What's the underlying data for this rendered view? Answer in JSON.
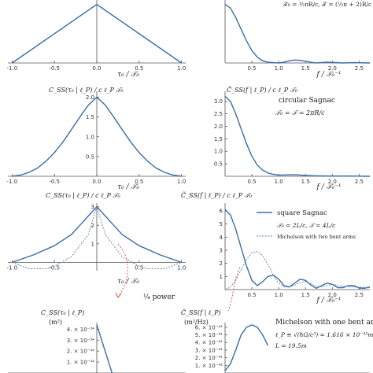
{
  "chart_data": [
    {
      "id": "p1",
      "type": "line",
      "xlabel": "τ₀ / 𝒯₀",
      "xlim": [
        -1.05,
        1.05
      ],
      "ylim": [
        0,
        4.3
      ],
      "xticks": [
        "-1.0",
        "-0.5",
        "0.0",
        "0.5",
        "1.0"
      ],
      "yticks": [],
      "series": [
        {
          "style": "solid",
          "x": [
            -1.0,
            0.0,
            1.0
          ],
          "y": [
            0.0,
            4.0,
            0.0
          ]
        }
      ]
    },
    {
      "id": "p2",
      "type": "line",
      "xlabel": "f / 𝒯₀⁻¹",
      "xlim": [
        0,
        2.7
      ],
      "ylim": [
        0,
        4.3
      ],
      "xticks": [
        "0.5",
        "1.0",
        "1.5",
        "2.0",
        "2.5"
      ],
      "annotations": [
        "𝒯₀ = ½πR/c,  𝒯 = (½π + 2)R/c"
      ],
      "series": [
        {
          "style": "solid",
          "x": [
            0,
            0.1,
            0.2,
            0.3,
            0.4,
            0.5,
            0.6,
            0.7,
            0.8,
            0.9,
            1.0,
            1.1,
            1.2,
            1.3,
            1.4,
            1.5,
            1.6,
            1.7,
            1.8,
            1.9,
            2.0,
            2.2,
            2.4,
            2.7
          ],
          "y": [
            4.0,
            3.75,
            3.1,
            2.3,
            1.5,
            0.85,
            0.4,
            0.15,
            0.05,
            0.02,
            0.0,
            0.05,
            0.15,
            0.2,
            0.18,
            0.12,
            0.05,
            0.0,
            0.03,
            0.06,
            0.04,
            0.0,
            0.02,
            0.0
          ]
        }
      ]
    },
    {
      "id": "p3",
      "type": "line",
      "ylabel": "C_SS(τ₀ | ℓ_P) / c ℓ_P 𝒯₀",
      "xlabel": "τ₀ / 𝒯₀",
      "xlim": [
        -1.05,
        1.05
      ],
      "ylim": [
        0,
        2.15
      ],
      "xticks": [
        "-1.0",
        "-0.5",
        "0.0",
        "0.5",
        "1.0"
      ],
      "yticks": [
        "0.5",
        "1.0",
        "1.5",
        "2.0"
      ],
      "series": [
        {
          "style": "solid",
          "x": [
            -1.0,
            -0.9,
            -0.8,
            -0.7,
            -0.6,
            -0.5,
            -0.4,
            -0.3,
            -0.2,
            -0.1,
            0.0,
            0.1,
            0.2,
            0.3,
            0.4,
            0.5,
            0.6,
            0.7,
            0.8,
            0.9,
            1.0
          ],
          "y": [
            0.0,
            0.03,
            0.1,
            0.21,
            0.38,
            0.6,
            0.87,
            1.18,
            1.5,
            1.8,
            2.0,
            1.8,
            1.5,
            1.18,
            0.87,
            0.6,
            0.38,
            0.21,
            0.1,
            0.03,
            0.0
          ]
        }
      ]
    },
    {
      "id": "p4",
      "type": "line",
      "ylabel": "C̃_SS(f | ℓ_P) / c ℓ_P 𝒯₀",
      "xlabel": "f / 𝒯₀⁻¹",
      "xlim": [
        0,
        2.7
      ],
      "ylim": [
        0,
        3.4
      ],
      "xticks": [
        "0.5",
        "1.0",
        "1.5",
        "2.0",
        "2.5"
      ],
      "yticks": [
        "0.5",
        "1.0",
        "1.5",
        "2.0",
        "2.5",
        "3.0"
      ],
      "annotations": [
        "circular Sagnac",
        "𝒯₀ = 𝒯 = 2πR/c"
      ],
      "series": [
        {
          "style": "solid",
          "x": [
            0,
            0.1,
            0.2,
            0.3,
            0.4,
            0.5,
            0.6,
            0.7,
            0.8,
            0.9,
            1.0,
            1.1,
            1.2,
            1.3,
            1.4,
            1.5,
            1.7,
            2.0,
            2.3,
            2.7
          ],
          "y": [
            3.2,
            3.0,
            2.5,
            1.9,
            1.3,
            0.8,
            0.45,
            0.25,
            0.13,
            0.08,
            0.05,
            0.05,
            0.06,
            0.06,
            0.05,
            0.03,
            0.02,
            0.01,
            0.01,
            0.0
          ]
        }
      ]
    },
    {
      "id": "p5",
      "type": "line",
      "ylabel": "C_SS(τ₀ | ℓ_P) / c ℓ_P 𝒯₀",
      "xlabel": "τ₀ / 𝒯₀",
      "xlim": [
        -1.05,
        1.05
      ],
      "ylim": [
        -0.45,
        3.2
      ],
      "xticks": [
        "-1.0",
        "-0.5",
        "0.5",
        "1.0"
      ],
      "yticks": [
        "1",
        "2",
        "3"
      ],
      "series": [
        {
          "style": "solid",
          "x": [
            -1.0,
            -0.75,
            -0.5,
            -0.3,
            -0.2,
            -0.1,
            0.0,
            0.1,
            0.2,
            0.3,
            0.5,
            0.75,
            1.0
          ],
          "y": [
            0.0,
            0.4,
            0.9,
            1.5,
            2.0,
            2.5,
            3.0,
            2.5,
            2.0,
            1.5,
            0.9,
            0.4,
            0.0
          ]
        },
        {
          "style": "dotted",
          "x": [
            -1.0,
            -0.8,
            -0.6,
            -0.5,
            -0.3,
            -0.1,
            0.0,
            0.1,
            0.3,
            0.5,
            0.6,
            0.8,
            1.0
          ],
          "y": [
            0.0,
            -0.35,
            -0.35,
            -0.2,
            0.3,
            1.5,
            3.0,
            1.5,
            0.3,
            -0.2,
            -0.35,
            -0.35,
            0.0
          ]
        }
      ]
    },
    {
      "id": "p6",
      "type": "line",
      "ylabel": "C̃_SS(f | ℓ_P) / c ℓ_P 𝒯₀",
      "xlabel": "f / 𝒯₀⁻¹",
      "xlim": [
        0,
        2.7
      ],
      "ylim": [
        0,
        6.6
      ],
      "xticks": [
        "0.5",
        "1.0",
        "1.5",
        "2.0",
        "2.5"
      ],
      "yticks": [
        "1",
        "2",
        "3",
        "4",
        "5",
        "6"
      ],
      "legend": [
        "square Sagnac",
        "𝒯₀ = 2L/c,  𝒯 = 4L/c",
        "Michelson with two bent arms"
      ],
      "series": [
        {
          "name": "square Sagnac",
          "style": "solid",
          "x": [
            0,
            0.1,
            0.2,
            0.3,
            0.4,
            0.5,
            0.6,
            0.7,
            0.8,
            0.9,
            1.0,
            1.1,
            1.2,
            1.3,
            1.4,
            1.5,
            1.6,
            1.7,
            1.8,
            1.9,
            2.0,
            2.1,
            2.2,
            2.3,
            2.4,
            2.5,
            2.6,
            2.7
          ],
          "y": [
            6.1,
            5.7,
            4.6,
            3.2,
            1.8,
            0.7,
            0.3,
            0.6,
            1.0,
            1.1,
            0.8,
            0.3,
            0.2,
            0.5,
            0.8,
            0.7,
            0.35,
            0.1,
            0.3,
            0.5,
            0.4,
            0.15,
            0.15,
            0.3,
            0.3,
            0.12,
            0.1,
            0.2
          ]
        },
        {
          "name": "Michelson with two bent arms",
          "style": "dotted",
          "x": [
            0,
            0.1,
            0.2,
            0.3,
            0.4,
            0.5,
            0.6,
            0.7,
            0.8,
            0.9,
            1.0,
            1.1,
            1.2,
            1.3,
            1.4,
            1.5,
            1.6,
            1.7,
            1.8,
            1.9,
            2.0,
            2.2,
            2.4,
            2.7
          ],
          "y": [
            0.0,
            0.2,
            0.7,
            1.5,
            2.3,
            2.8,
            2.9,
            2.6,
            1.9,
            1.1,
            0.5,
            0.2,
            0.2,
            0.35,
            0.55,
            0.6,
            0.45,
            0.25,
            0.2,
            0.3,
            0.4,
            0.25,
            0.2,
            0.15
          ]
        }
      ]
    },
    {
      "id": "p7",
      "type": "line",
      "ylabel": "C_SS(τ₀ | ℓ_P)",
      "yunit": "(m²)",
      "xlim": [
        -1.05,
        1.05
      ],
      "ylim": [
        0,
        4.6
      ],
      "yticks": [
        "1. × 10⁻³⁴",
        "2. × 10⁻³⁴",
        "3. × 10⁻³⁴",
        "4. × 10⁻³⁴"
      ],
      "series": [
        {
          "style": "solid",
          "x": [
            0.0,
            0.18
          ],
          "y": [
            4.4,
            0.0
          ]
        }
      ]
    },
    {
      "id": "p8",
      "type": "line",
      "ylabel": "C̃_SS(f | ℓ_P)",
      "yunit": "(m²/Hz)",
      "xlim": [
        0,
        2.7
      ],
      "ylim": [
        0,
        6.6
      ],
      "yticks": [
        "1. × 10⁻⁴¹",
        "2. × 10⁻⁴¹",
        "3. × 10⁻⁴¹",
        "4. × 10⁻⁴¹",
        "5. × 10⁻⁴¹",
        "6. × 10⁻⁴¹"
      ],
      "annotations": [
        "Michelson with one bent arm",
        "ℓ_P ≡ √(ħG/c³) = 1.616 × 10⁻³⁵m",
        "L = 19.5m"
      ],
      "series": [
        {
          "style": "solid",
          "x": [
            0.0,
            0.1,
            0.2,
            0.3,
            0.4,
            0.5,
            0.6,
            0.7,
            0.8
          ],
          "y": [
            0.3,
            1.2,
            3.0,
            5.0,
            6.0,
            6.3,
            6.0,
            5.0,
            3.6
          ]
        }
      ]
    }
  ],
  "mid_text": {
    "quarter_power": "¼ power",
    "tau_partial": "(τ₀)",
    "f_label": "f =",
    "f_label_left": "− ( )"
  }
}
